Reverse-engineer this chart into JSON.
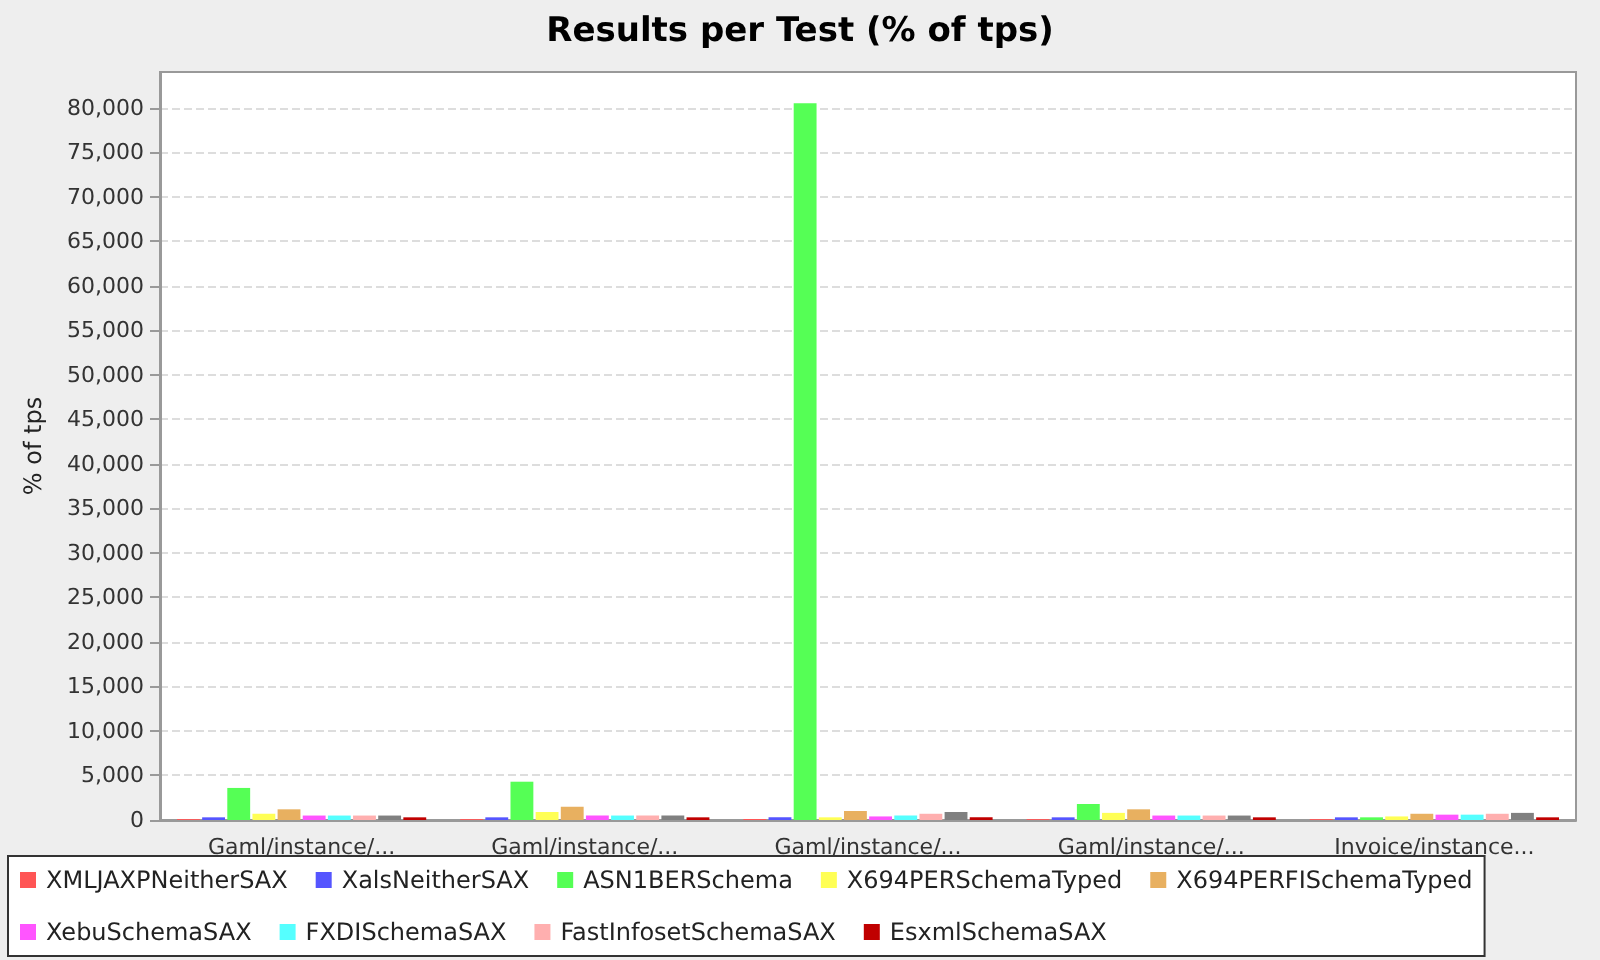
{
  "chart_data": {
    "type": "bar",
    "title": "Results per Test (% of tps)",
    "ylabel": "% of tps",
    "categories": [
      "Gaml/instance/...",
      "Gaml/instance/...",
      "Gaml/instance/...",
      "Gaml/instance/...",
      "Invoice/instance..."
    ],
    "series": [
      {
        "name": "XMLJAXPNeitherSAX",
        "color": "#ff5555",
        "values": [
          100,
          100,
          100,
          100,
          100
        ]
      },
      {
        "name": "XalsNeitherSAX",
        "color": "#5555ff",
        "values": [
          300,
          300,
          300,
          300,
          300
        ]
      },
      {
        "name": "ASN1BERSchema",
        "color": "#55ff55",
        "values": [
          3600,
          4300,
          80500,
          1800,
          300
        ]
      },
      {
        "name": "X694PERSchemaTyped",
        "color": "#ffff55",
        "values": [
          700,
          900,
          300,
          800,
          400
        ]
      },
      {
        "name": "X694PERFISchemaTyped",
        "color": "#e8b060",
        "values": [
          1200,
          1500,
          1000,
          1200,
          700
        ]
      },
      {
        "name": "XebuSchemaSAX",
        "color": "#ff55ff",
        "values": [
          500,
          500,
          400,
          500,
          600
        ]
      },
      {
        "name": "FXDISchemaSAX",
        "color": "#55ffff",
        "values": [
          500,
          500,
          500,
          500,
          600
        ]
      },
      {
        "name": "FastInfosetSchemaSAX",
        "color": "#ffafaf",
        "values": [
          500,
          500,
          700,
          500,
          700
        ]
      },
      {
        "color": "#808080",
        "values": [
          500,
          500,
          900,
          500,
          800
        ]
      },
      {
        "name": "EsxmlSchemaSAX",
        "color": "#c00000",
        "values": [
          300,
          300,
          300,
          300,
          300
        ]
      }
    ],
    "ylim": [
      0,
      84000
    ],
    "yticks": [
      0,
      {
        "value": 5000,
        "label": "5,000"
      },
      {
        "value": 10000,
        "label": "10,000"
      },
      {
        "value": 15000,
        "label": "15,000"
      },
      {
        "value": 20000,
        "label": "20,000"
      },
      {
        "value": 25000,
        "label": "25,000"
      },
      {
        "value": 30000,
        "label": "30,000"
      },
      {
        "value": 35000,
        "label": "35,000"
      },
      {
        "value": 40000,
        "label": "40,000"
      },
      {
        "value": 45000,
        "label": "45,000"
      },
      {
        "value": 50000,
        "label": "50,000"
      },
      {
        "value": 55000,
        "label": "55,000"
      },
      {
        "value": 60000,
        "label": "60,000"
      },
      {
        "value": 65000,
        "label": "65,000"
      },
      {
        "value": 70000,
        "label": "70,000"
      },
      {
        "value": 75000,
        "label": "75,000"
      },
      {
        "value": 80000,
        "label": "80,000"
      }
    ],
    "grid": "y",
    "legend": "bottom"
  }
}
